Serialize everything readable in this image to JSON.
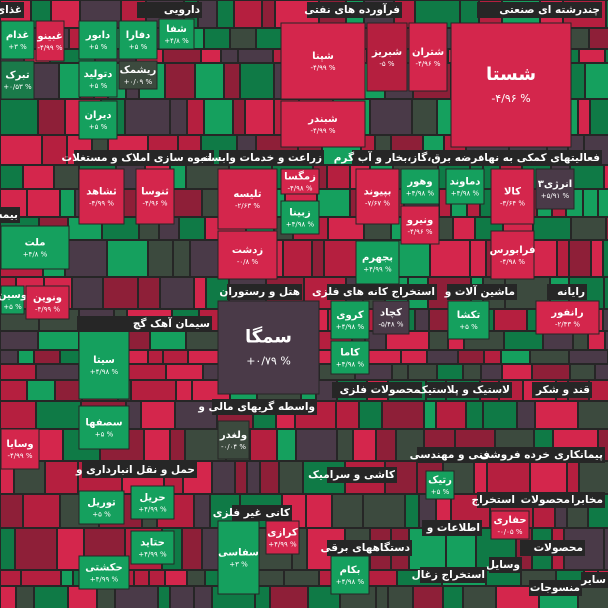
{
  "sectors": [
    {
      "title": "غذای"
    },
    {
      "title": "دارویی"
    },
    {
      "title": "فرآورده های نفتی"
    },
    {
      "title": "چندرشته ای صنعتی"
    },
    {
      "title": "انبوه سازی املاک و مستغلات"
    },
    {
      "title": "زراعت و خدمات وابسته"
    },
    {
      "title": "عرضه برق،گاز،بخار و آب گرم"
    },
    {
      "title": "فعالیتهای کمکی به نهاد"
    },
    {
      "title": "بیمه"
    },
    {
      "title": "سیمان آهک گچ"
    },
    {
      "title": "هتل و رستوران"
    },
    {
      "title": "استخراج کانه های فلزی"
    },
    {
      "title": "ماشین آلات و"
    },
    {
      "title": "رایانه"
    },
    {
      "title": "واسطه گریهای مالی و"
    },
    {
      "title": "محصولات فلزی"
    },
    {
      "title": "لاستیک و پلاستیک"
    },
    {
      "title": "قند و شکر"
    },
    {
      "title": "حمل و نقل انبارداری و"
    },
    {
      "title": "کاشی و سرامیک"
    },
    {
      "title": "فنی و مهندسی"
    },
    {
      "title": "خرده فروشی"
    },
    {
      "title": "پیمانکاری"
    },
    {
      "title": "کانی غیر فلزی"
    },
    {
      "title": "مخابرات"
    },
    {
      "title": "محصولات"
    },
    {
      "title": "استخراج"
    },
    {
      "title": "اطلاعات و"
    },
    {
      "title": "دستگاههای برقی"
    },
    {
      "title": "محصولات"
    },
    {
      "title": "وسایل"
    },
    {
      "title": "استخراج زغال"
    },
    {
      "title": "منسوجات"
    },
    {
      "title": "سایر"
    }
  ],
  "stocks": [
    {
      "name": "شستا",
      "change": "-۴/۹۶ %",
      "color": "#d4264c"
    },
    {
      "name": "شتران",
      "change": "-۴/۹۶ %",
      "color": "#d4264c"
    },
    {
      "name": "شبریز",
      "change": "-۵ %",
      "color": "#b51f3f"
    },
    {
      "name": "شپنا",
      "change": "-۴/۹۹ %",
      "color": "#d4264c"
    },
    {
      "name": "شبندر",
      "change": "-۴/۹۹ %",
      "color": "#d4264c"
    },
    {
      "name": "غدام",
      "change": "+۳ %",
      "color": "#15a05e"
    },
    {
      "name": "غبینو",
      "change": "-۴/۹۹ %",
      "color": "#d4264c"
    },
    {
      "name": "تبرک",
      "change": "+۰/۵۳ %",
      "color": "#1a7a4a"
    },
    {
      "name": "دابور",
      "change": "+۵ %",
      "color": "#15a05e"
    },
    {
      "name": "دفارا",
      "change": "+۵ %",
      "color": "#15a05e"
    },
    {
      "name": "شفا",
      "change": "+۴/۸ %",
      "color": "#15a05e"
    },
    {
      "name": "دتولید",
      "change": "+۵ %",
      "color": "#15a05e"
    },
    {
      "name": "ریشمک",
      "change": "+۰/۰۹ %",
      "color": "#3c4a3e"
    },
    {
      "name": "دیران",
      "change": "+۵ %",
      "color": "#15a05e"
    },
    {
      "name": "ثشاهد",
      "change": "-۴/۹۹ %",
      "color": "#d4264c"
    },
    {
      "name": "ثنوسا",
      "change": "-۴/۹۶ %",
      "color": "#d4264c"
    },
    {
      "name": "تلیسه",
      "change": "-۲/۶۳ %",
      "color": "#d4264c"
    },
    {
      "name": "زمگسا",
      "change": "-۴/۹۸ %",
      "color": "#d4264c"
    },
    {
      "name": "زبینا",
      "change": "+۴/۹۸ %",
      "color": "#15a05e"
    },
    {
      "name": "زدشت",
      "change": "-۰/۸ %",
      "color": "#d4264c"
    },
    {
      "name": "دماوند",
      "change": "+۴/۹۸ %",
      "color": "#15a05e"
    },
    {
      "name": "وهور",
      "change": "+۴/۹۸ %",
      "color": "#15a05e"
    },
    {
      "name": "بپیوند",
      "change": "-۷/۶۷ %",
      "color": "#d4264c"
    },
    {
      "name": "ونیرو",
      "change": "-۴/۹۶ %",
      "color": "#d4264c"
    },
    {
      "name": "بجهرم",
      "change": "+۴/۹۹ %",
      "color": "#15a05e"
    },
    {
      "name": "انرژی۳",
      "change": "+۵/۹۱ %",
      "color": "#4a3a48"
    },
    {
      "name": "کالا",
      "change": "-۳/۶۴ %",
      "color": "#d4264c"
    },
    {
      "name": "فرابورس",
      "change": "-۴/۹۸ %",
      "color": "#d4264c"
    },
    {
      "name": "ملت",
      "change": "+۴/۸ %",
      "color": "#15a05e"
    },
    {
      "name": "وسین",
      "change": "+۵ %",
      "color": "#15a05e"
    },
    {
      "name": "ونوین",
      "change": "-۴/۹۹ %",
      "color": "#d4264c"
    },
    {
      "name": "سیتا",
      "change": "+۴/۹۸ %",
      "color": "#15a05e"
    },
    {
      "name": "سصفها",
      "change": "+۵ %",
      "color": "#15a05e"
    },
    {
      "name": "سمگا",
      "change": "+۰/۷۹ %",
      "color": "#4a3a48"
    },
    {
      "name": "کروی",
      "change": "+۴/۹۸ %",
      "color": "#15a05e"
    },
    {
      "name": "کچاد",
      "change": "-۵/۴۸ %",
      "color": "#4a3a48"
    },
    {
      "name": "کاما",
      "change": "+۴/۹۸ %",
      "color": "#15a05e"
    },
    {
      "name": "تکشا",
      "change": "+۵ %",
      "color": "#15a05e"
    },
    {
      "name": "رانفور",
      "change": "-۲/۴۳ %",
      "color": "#d4264c"
    },
    {
      "name": "ولغدر",
      "change": "-۰/۰۴ %",
      "color": "#3c4a3e"
    },
    {
      "name": "وسایا",
      "change": "-۴/۹۹ %",
      "color": "#d4264c"
    },
    {
      "name": "حریل",
      "change": "+۴/۹۹ %",
      "color": "#15a05e"
    },
    {
      "name": "توریل",
      "change": "+۵ %",
      "color": "#15a05e"
    },
    {
      "name": "حتاید",
      "change": "+۴/۹۹ %",
      "color": "#15a05e"
    },
    {
      "name": "حکشتی",
      "change": "+۴/۹۹ %",
      "color": "#15a05e"
    },
    {
      "name": "رتیک",
      "change": "+۵ %",
      "color": "#15a05e"
    },
    {
      "name": "سفاسی",
      "change": "+۳ %",
      "color": "#15a05e"
    },
    {
      "name": "کرازی",
      "change": "+۴/۹۹ %",
      "color": "#d4264c"
    },
    {
      "name": "حفاری",
      "change": "-۰/۰۵ %",
      "color": "#d4264c"
    },
    {
      "name": "بکام",
      "change": "+۴/۹۸ %",
      "color": "#15a05e"
    }
  ]
}
